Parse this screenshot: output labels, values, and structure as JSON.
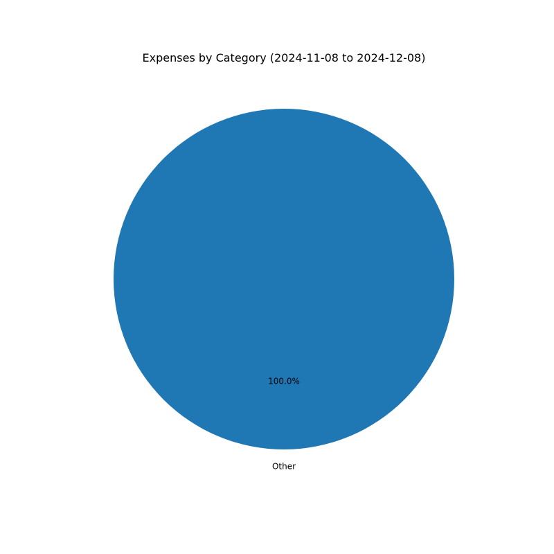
{
  "chart_data": {
    "type": "pie",
    "title": "Expenses by Category (2024-11-08 to 2024-12-08)",
    "slices": [
      {
        "label": "Other",
        "value": 100.0,
        "percent_label": "100.0%",
        "color": "#1f77b4"
      }
    ]
  }
}
